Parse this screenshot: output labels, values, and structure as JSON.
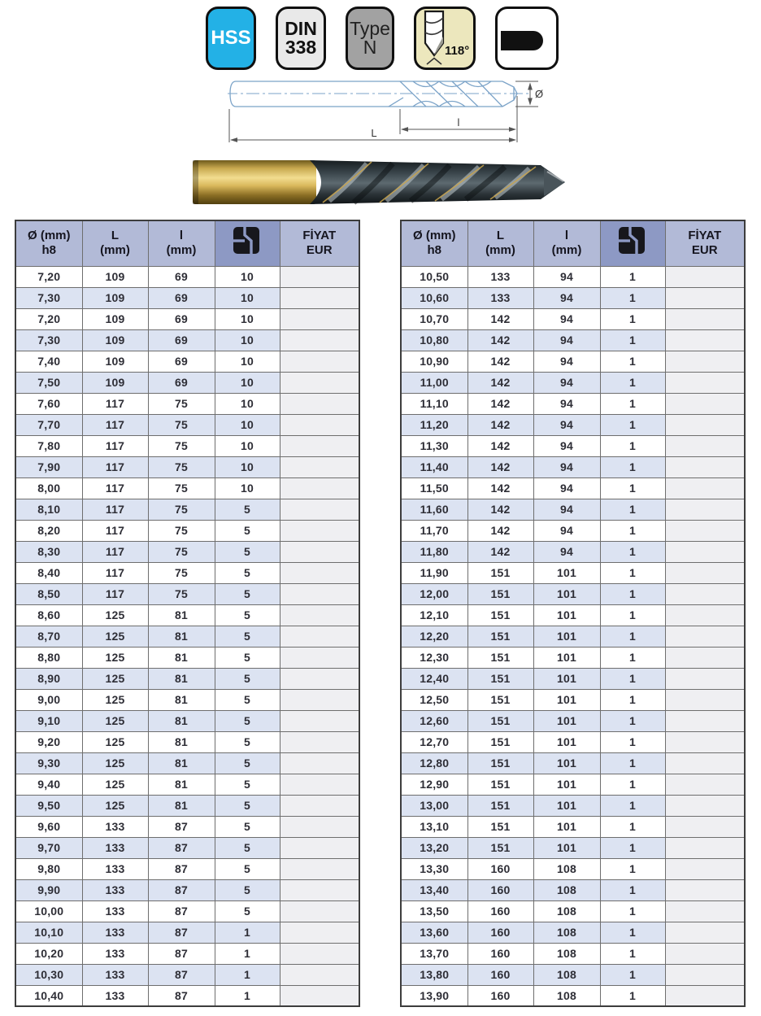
{
  "badges": {
    "hss": {
      "label": "HSS",
      "bg": "#23b1e6"
    },
    "din": {
      "line1": "DIN",
      "line2": "338",
      "bg": "#e9e9e9"
    },
    "type": {
      "line1": "Type",
      "line2": "N",
      "bg": "#a2a2a2"
    },
    "point_angle": {
      "label": "118°",
      "bg": "#ece7bd",
      "icon": "drill-tip-icon"
    },
    "shank": {
      "icon": "cylindrical-shank-icon"
    }
  },
  "diagram": {
    "labels": {
      "diameter": "Ø",
      "flute_length": "l",
      "overall_length": "L"
    }
  },
  "table_header": {
    "c1a": "Ø (mm)",
    "c1b": "h8",
    "c2a": "L",
    "c2b": "(mm)",
    "c3a": "l",
    "c3b": "(mm)",
    "c4_icon": "package-icon",
    "c5a": "FİYAT",
    "c5b": "EUR"
  },
  "colors": {
    "header_bg": "#b2bad7",
    "header_icon_bg": "#8d99c4",
    "row_alt": "#dce3f2",
    "price_cell": "#efeff2",
    "hss_cyan": "#23b1e6",
    "angle_cream": "#ece7bd",
    "drawing_blue": "#7ba3c8",
    "shank_gold": "#c7a84e"
  },
  "left_table": {
    "rows": [
      [
        "7,20",
        "109",
        "69",
        "10"
      ],
      [
        "7,30",
        "109",
        "69",
        "10"
      ],
      [
        "7,20",
        "109",
        "69",
        "10"
      ],
      [
        "7,30",
        "109",
        "69",
        "10"
      ],
      [
        "7,40",
        "109",
        "69",
        "10"
      ],
      [
        "7,50",
        "109",
        "69",
        "10"
      ],
      [
        "7,60",
        "117",
        "75",
        "10"
      ],
      [
        "7,70",
        "117",
        "75",
        "10"
      ],
      [
        "7,80",
        "117",
        "75",
        "10"
      ],
      [
        "7,90",
        "117",
        "75",
        "10"
      ],
      [
        "8,00",
        "117",
        "75",
        "10"
      ],
      [
        "8,10",
        "117",
        "75",
        "5"
      ],
      [
        "8,20",
        "117",
        "75",
        "5"
      ],
      [
        "8,30",
        "117",
        "75",
        "5"
      ],
      [
        "8,40",
        "117",
        "75",
        "5"
      ],
      [
        "8,50",
        "117",
        "75",
        "5"
      ],
      [
        "8,60",
        "125",
        "81",
        "5"
      ],
      [
        "8,70",
        "125",
        "81",
        "5"
      ],
      [
        "8,80",
        "125",
        "81",
        "5"
      ],
      [
        "8,90",
        "125",
        "81",
        "5"
      ],
      [
        "9,00",
        "125",
        "81",
        "5"
      ],
      [
        "9,10",
        "125",
        "81",
        "5"
      ],
      [
        "9,20",
        "125",
        "81",
        "5"
      ],
      [
        "9,30",
        "125",
        "81",
        "5"
      ],
      [
        "9,40",
        "125",
        "81",
        "5"
      ],
      [
        "9,50",
        "125",
        "81",
        "5"
      ],
      [
        "9,60",
        "133",
        "87",
        "5"
      ],
      [
        "9,70",
        "133",
        "87",
        "5"
      ],
      [
        "9,80",
        "133",
        "87",
        "5"
      ],
      [
        "9,90",
        "133",
        "87",
        "5"
      ],
      [
        "10,00",
        "133",
        "87",
        "5"
      ],
      [
        "10,10",
        "133",
        "87",
        "1"
      ],
      [
        "10,20",
        "133",
        "87",
        "1"
      ],
      [
        "10,30",
        "133",
        "87",
        "1"
      ],
      [
        "10,40",
        "133",
        "87",
        "1"
      ]
    ]
  },
  "right_table": {
    "rows": [
      [
        "10,50",
        "133",
        "94",
        "1"
      ],
      [
        "10,60",
        "133",
        "94",
        "1"
      ],
      [
        "10,70",
        "142",
        "94",
        "1"
      ],
      [
        "10,80",
        "142",
        "94",
        "1"
      ],
      [
        "10,90",
        "142",
        "94",
        "1"
      ],
      [
        "11,00",
        "142",
        "94",
        "1"
      ],
      [
        "11,10",
        "142",
        "94",
        "1"
      ],
      [
        "11,20",
        "142",
        "94",
        "1"
      ],
      [
        "11,30",
        "142",
        "94",
        "1"
      ],
      [
        "11,40",
        "142",
        "94",
        "1"
      ],
      [
        "11,50",
        "142",
        "94",
        "1"
      ],
      [
        "11,60",
        "142",
        "94",
        "1"
      ],
      [
        "11,70",
        "142",
        "94",
        "1"
      ],
      [
        "11,80",
        "142",
        "94",
        "1"
      ],
      [
        "11,90",
        "151",
        "101",
        "1"
      ],
      [
        "12,00",
        "151",
        "101",
        "1"
      ],
      [
        "12,10",
        "151",
        "101",
        "1"
      ],
      [
        "12,20",
        "151",
        "101",
        "1"
      ],
      [
        "12,30",
        "151",
        "101",
        "1"
      ],
      [
        "12,40",
        "151",
        "101",
        "1"
      ],
      [
        "12,50",
        "151",
        "101",
        "1"
      ],
      [
        "12,60",
        "151",
        "101",
        "1"
      ],
      [
        "12,70",
        "151",
        "101",
        "1"
      ],
      [
        "12,80",
        "151",
        "101",
        "1"
      ],
      [
        "12,90",
        "151",
        "101",
        "1"
      ],
      [
        "13,00",
        "151",
        "101",
        "1"
      ],
      [
        "13,10",
        "151",
        "101",
        "1"
      ],
      [
        "13,20",
        "151",
        "101",
        "1"
      ],
      [
        "13,30",
        "160",
        "108",
        "1"
      ],
      [
        "13,40",
        "160",
        "108",
        "1"
      ],
      [
        "13,50",
        "160",
        "108",
        "1"
      ],
      [
        "13,60",
        "160",
        "108",
        "1"
      ],
      [
        "13,70",
        "160",
        "108",
        "1"
      ],
      [
        "13,80",
        "160",
        "108",
        "1"
      ],
      [
        "13,90",
        "160",
        "108",
        "1"
      ]
    ]
  }
}
